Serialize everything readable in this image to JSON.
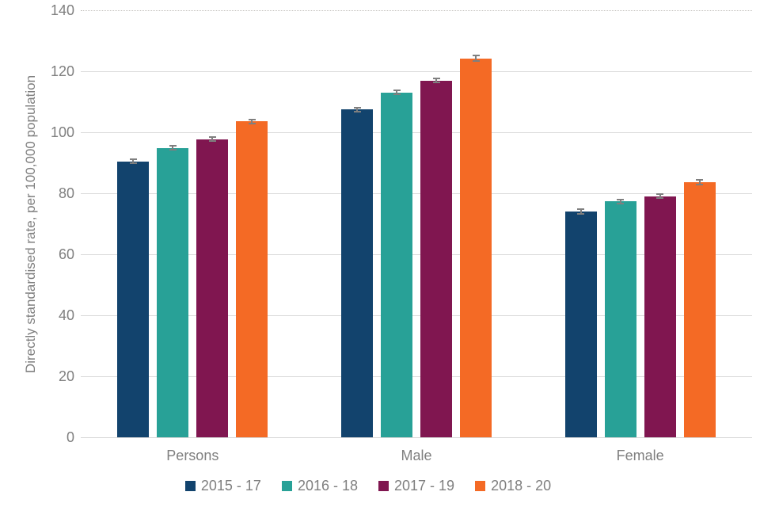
{
  "chart_data": {
    "type": "bar",
    "title": "",
    "xlabel": "",
    "ylabel": "Directly standardised rate, per 100,000 population",
    "categories": [
      "Persons",
      "Male",
      "Female"
    ],
    "series": [
      {
        "name": "2015 - 17",
        "color": "#12436D",
        "values": [
          90.5,
          107.5,
          74.0
        ],
        "errors": [
          1.0,
          0.9,
          1.0
        ]
      },
      {
        "name": "2016 - 18",
        "color": "#28A197",
        "values": [
          94.9,
          113.0,
          77.3
        ],
        "errors": [
          0.9,
          0.9,
          0.9
        ]
      },
      {
        "name": "2017 - 19",
        "color": "#801650",
        "values": [
          97.7,
          117.0,
          79.0
        ],
        "errors": [
          0.9,
          1.0,
          0.9
        ]
      },
      {
        "name": "2018 - 20",
        "color": "#F46A25",
        "values": [
          103.6,
          124.2,
          83.6
        ],
        "errors": [
          0.9,
          1.2,
          1.0
        ]
      }
    ],
    "ylim": [
      0,
      140
    ],
    "yticks": [
      0,
      20,
      40,
      60,
      80,
      100,
      120,
      140
    ],
    "grid": "horizontal",
    "top_gridline_style": "dotted",
    "legend_position": "bottom",
    "error_bars": true
  },
  "colors": {
    "text_gray": "#7f7f7f",
    "gridline": "#d9d9d9",
    "error_bar": "#7f7f7f",
    "background": "#ffffff"
  }
}
